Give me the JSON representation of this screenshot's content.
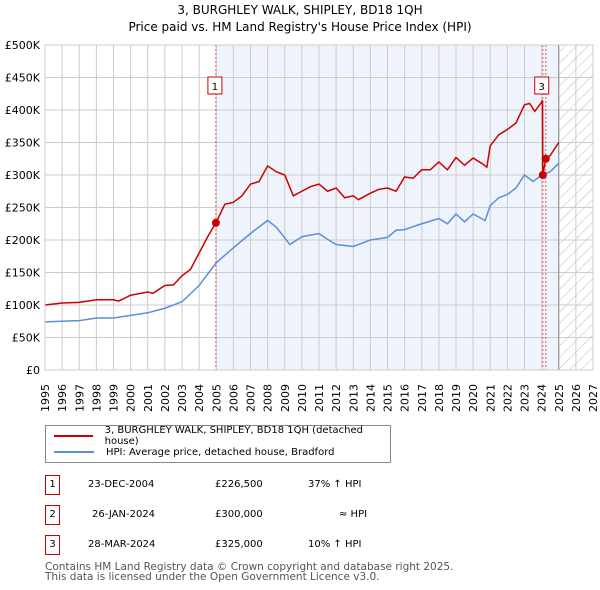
{
  "chart_data": {
    "type": "line",
    "title": "3, BURGHLEY WALK, SHIPLEY, BD18 1QH",
    "subtitle": "Price paid vs. HM Land Registry's House Price Index (HPI)",
    "xlim": [
      1995,
      2027
    ],
    "ylim": [
      0,
      500000
    ],
    "x_ticks": [
      "1995",
      "1996",
      "1997",
      "1998",
      "1999",
      "2000",
      "2001",
      "2002",
      "2003",
      "2004",
      "2005",
      "2006",
      "2007",
      "2008",
      "2009",
      "2010",
      "2011",
      "2012",
      "2013",
      "2014",
      "2015",
      "2016",
      "2017",
      "2018",
      "2019",
      "2020",
      "2021",
      "2022",
      "2023",
      "2024",
      "2025",
      "2026",
      "2027"
    ],
    "y_ticks": [
      {
        "v": 0,
        "l": "£0"
      },
      {
        "v": 50000,
        "l": "£50K"
      },
      {
        "v": 100000,
        "l": "£100K"
      },
      {
        "v": 150000,
        "l": "£150K"
      },
      {
        "v": 200000,
        "l": "£200K"
      },
      {
        "v": 250000,
        "l": "£250K"
      },
      {
        "v": 300000,
        "l": "£300K"
      },
      {
        "v": 350000,
        "l": "£350K"
      },
      {
        "v": 400000,
        "l": "£400K"
      },
      {
        "v": 450000,
        "l": "£450K"
      },
      {
        "v": 500000,
        "l": "£500K"
      }
    ],
    "shaded_range": [
      2004.98,
      2025.0
    ],
    "forecast_hatch_from": 2025.0,
    "series": [
      {
        "name": "3, BURGHLEY WALK, SHIPLEY, BD18 1QH (detached house)",
        "color": "#cc0000",
        "x": [
          1995,
          1996,
          1997,
          1998,
          1999,
          1999.3,
          2000,
          2001,
          2001.3,
          2002,
          2002.5,
          2003,
          2003.5,
          2004,
          2004.5,
          2004.98,
          2005.5,
          2006,
          2006.5,
          2007,
          2007.5,
          2008,
          2008.5,
          2009,
          2009.5,
          2010,
          2010.5,
          2011,
          2011.5,
          2012,
          2012.5,
          2013,
          2013.3,
          2014,
          2014.5,
          2015,
          2015.5,
          2016,
          2016.5,
          2017,
          2017.5,
          2018,
          2018.5,
          2019,
          2019.5,
          2020,
          2020.5,
          2020.8,
          2021,
          2021.5,
          2022,
          2022.5,
          2023,
          2023.3,
          2023.6,
          2024,
          2024.05,
          2024.07,
          2024.24,
          2024.5,
          2025
        ],
        "y": [
          100000,
          103000,
          104000,
          108000,
          108000,
          106000,
          115000,
          120000,
          118000,
          130000,
          131000,
          145000,
          155000,
          180000,
          205000,
          226500,
          255000,
          258000,
          268000,
          286000,
          290000,
          314000,
          305000,
          300000,
          268000,
          275000,
          282000,
          286000,
          275000,
          280000,
          265000,
          268000,
          262000,
          272000,
          278000,
          280000,
          275000,
          297000,
          295000,
          308000,
          308000,
          320000,
          308000,
          327000,
          315000,
          326000,
          318000,
          312000,
          345000,
          362000,
          370000,
          380000,
          408000,
          410000,
          398000,
          412000,
          415000,
          300000,
          325000,
          330000,
          350000
        ]
      },
      {
        "name": "HPI: Average price, detached house, Bradford",
        "color": "#5b8fd6",
        "x": [
          1995,
          1997,
          1998,
          1999,
          2000,
          2001,
          2002,
          2003,
          2004,
          2005,
          2006,
          2007,
          2008,
          2008.5,
          2009.3,
          2010,
          2011,
          2011.5,
          2012,
          2013,
          2014,
          2015,
          2015.5,
          2016,
          2017,
          2018,
          2018.5,
          2019,
          2019.5,
          2020,
          2020.7,
          2021,
          2021.5,
          2022,
          2022.5,
          2023,
          2023.5,
          2024,
          2024.5,
          2025
        ],
        "y": [
          74000,
          76000,
          80000,
          80000,
          84000,
          88000,
          95000,
          105000,
          130000,
          165000,
          188000,
          210000,
          230000,
          220000,
          193000,
          205000,
          210000,
          201000,
          193000,
          190000,
          200000,
          204000,
          215000,
          216000,
          225000,
          233000,
          225000,
          240000,
          228000,
          240000,
          230000,
          253000,
          265000,
          270000,
          280000,
          300000,
          290000,
          300000,
          305000,
          318000
        ]
      }
    ],
    "markers": [
      {
        "label": "1",
        "x": 2004.98,
        "y": 226500
      },
      {
        "label": "2",
        "x": 2024.07,
        "y": 300000
      },
      {
        "label": "3",
        "x": 2024.24,
        "y": 325000
      }
    ]
  },
  "legend": {
    "property": "3, BURGHLEY WALK, SHIPLEY, BD18 1QH (detached house)",
    "hpi": "HPI: Average price, detached house, Bradford"
  },
  "transactions": [
    {
      "num": "1",
      "date": "23-DEC-2004",
      "price": "£226,500",
      "vs_hpi": "37% ↑ HPI"
    },
    {
      "num": "2",
      "date": "26-JAN-2024",
      "price": "£300,000",
      "vs_hpi": "≈ HPI"
    },
    {
      "num": "3",
      "date": "28-MAR-2024",
      "price": "£325,000",
      "vs_hpi": "10% ↑ HPI"
    }
  ],
  "footer": {
    "line1": "Contains HM Land Registry data © Crown copyright and database right 2025.",
    "line2": "This data is licensed under the Open Government Licence v3.0."
  }
}
